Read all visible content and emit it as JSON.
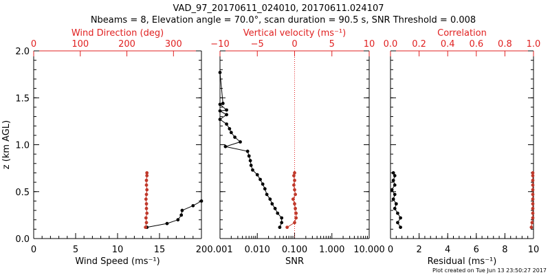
{
  "title": {
    "line1": "VAD_97_20170611_024010, 20170611.024107",
    "line2": "Nbeams = 8, Elevation angle = 70.0°, scan duration = 90.5 s, SNR Threshold = 0.008"
  },
  "footer": "Plot created on Tue Jun 13 23:50:27 2017",
  "colors": {
    "black": "#000000",
    "red": "#c0392b",
    "axis_red": "#e02020"
  },
  "chart_data": [
    {
      "type": "line",
      "panel": "wind",
      "ylabel": "z (km AGL)",
      "ylim": [
        0,
        2.0
      ],
      "yticks": [
        "0.0",
        "0.5",
        "1.0",
        "1.5",
        "2.0"
      ],
      "xlabel": "Wind Speed (ms⁻¹)",
      "xlim": [
        0,
        20
      ],
      "xticks": [
        "0",
        "5",
        "10",
        "15",
        "20"
      ],
      "top_label": "Wind Direction (deg)",
      "top_xlim": [
        0,
        360
      ],
      "top_xticks": [
        "0",
        "100",
        "200",
        "300"
      ],
      "series": [
        {
          "color": "#000000",
          "points": [
            [
              13.5,
              0.12
            ],
            [
              15.9,
              0.16
            ],
            [
              17.2,
              0.2
            ],
            [
              17.6,
              0.25
            ],
            [
              17.7,
              0.3
            ],
            [
              19.0,
              0.35
            ],
            [
              20.0,
              0.4
            ]
          ]
        },
        {
          "color": "#c0392b",
          "axis": "top",
          "points": [
            [
              240,
              0.12
            ],
            [
              242,
              0.17
            ],
            [
              241,
              0.22
            ],
            [
              243,
              0.27
            ],
            [
              242,
              0.32
            ],
            [
              242,
              0.37
            ],
            [
              241,
              0.42
            ],
            [
              242,
              0.47
            ],
            [
              243,
              0.52
            ],
            [
              242,
              0.57
            ],
            [
              242,
              0.62
            ],
            [
              243,
              0.67
            ],
            [
              243,
              0.7
            ]
          ]
        }
      ]
    },
    {
      "type": "line",
      "panel": "snr",
      "xlabel": "SNR",
      "xscale": "log",
      "xlim": [
        0.001,
        10
      ],
      "xticks": [
        "0.001",
        "0.010",
        "0.100",
        "1.000",
        "10.000"
      ],
      "top_label": "Vertical velocity (ms⁻¹)",
      "top_xlim": [
        -10,
        10
      ],
      "top_xticks": [
        "−10",
        "−5",
        "0",
        "5",
        "10"
      ],
      "reference_line": 0,
      "series": [
        {
          "color": "#000000",
          "points": [
            [
              0.0008,
              1.77
            ],
            [
              0.0012,
              1.44
            ],
            [
              0.0009,
              1.43
            ],
            [
              0.0015,
              1.37
            ],
            [
              0.0009,
              1.36
            ],
            [
              0.0015,
              1.32
            ],
            [
              0.0008,
              1.27
            ],
            [
              0.0015,
              1.22
            ],
            [
              0.0018,
              1.17
            ],
            [
              0.002,
              1.13
            ],
            [
              0.0025,
              1.08
            ],
            [
              0.0035,
              1.03
            ],
            [
              0.0014,
              0.98
            ],
            [
              0.0055,
              0.93
            ],
            [
              0.006,
              0.88
            ],
            [
              0.0065,
              0.83
            ],
            [
              0.0068,
              0.78
            ],
            [
              0.0075,
              0.73
            ],
            [
              0.01,
              0.68
            ],
            [
              0.012,
              0.63
            ],
            [
              0.014,
              0.58
            ],
            [
              0.016,
              0.53
            ],
            [
              0.018,
              0.47
            ],
            [
              0.022,
              0.42
            ],
            [
              0.025,
              0.37
            ],
            [
              0.03,
              0.32
            ],
            [
              0.035,
              0.27
            ],
            [
              0.045,
              0.22
            ],
            [
              0.045,
              0.17
            ],
            [
              0.04,
              0.12
            ]
          ]
        },
        {
          "color": "#c0392b",
          "axis": "top",
          "points": [
            [
              -1.0,
              0.12
            ],
            [
              0.0,
              0.17
            ],
            [
              0.2,
              0.22
            ],
            [
              0.2,
              0.27
            ],
            [
              0.1,
              0.32
            ],
            [
              0.0,
              0.37
            ],
            [
              -0.2,
              0.42
            ],
            [
              0.1,
              0.47
            ],
            [
              0.0,
              0.52
            ],
            [
              -0.1,
              0.57
            ],
            [
              0.0,
              0.62
            ],
            [
              -0.1,
              0.67
            ],
            [
              0.0,
              0.7
            ]
          ]
        }
      ]
    },
    {
      "type": "line",
      "panel": "residual",
      "xlabel": "Residual (ms⁻¹)",
      "xlim": [
        0,
        10
      ],
      "xticks": [
        "0",
        "2",
        "4",
        "6",
        "8",
        "10"
      ],
      "top_label": "Correlation",
      "top_xlim": [
        0,
        1.0
      ],
      "top_xticks": [
        "0.0",
        "0.2",
        "0.4",
        "0.6",
        "0.8",
        "1.0"
      ],
      "series": [
        {
          "color": "#000000",
          "points": [
            [
              0.7,
              0.12
            ],
            [
              0.5,
              0.17
            ],
            [
              0.7,
              0.22
            ],
            [
              0.5,
              0.27
            ],
            [
              0.3,
              0.32
            ],
            [
              0.4,
              0.37
            ],
            [
              0.2,
              0.42
            ],
            [
              0.3,
              0.47
            ],
            [
              0.1,
              0.52
            ],
            [
              0.3,
              0.57
            ],
            [
              0.2,
              0.62
            ],
            [
              0.3,
              0.67
            ],
            [
              0.2,
              0.7
            ]
          ]
        },
        {
          "color": "#c0392b",
          "axis": "top",
          "points": [
            [
              0.985,
              0.12
            ],
            [
              0.99,
              0.17
            ],
            [
              0.995,
              0.22
            ],
            [
              0.995,
              0.27
            ],
            [
              0.995,
              0.32
            ],
            [
              0.995,
              0.37
            ],
            [
              0.995,
              0.42
            ],
            [
              0.995,
              0.47
            ],
            [
              0.995,
              0.52
            ],
            [
              0.995,
              0.57
            ],
            [
              0.995,
              0.62
            ],
            [
              0.995,
              0.67
            ],
            [
              0.995,
              0.7
            ]
          ]
        }
      ]
    }
  ]
}
